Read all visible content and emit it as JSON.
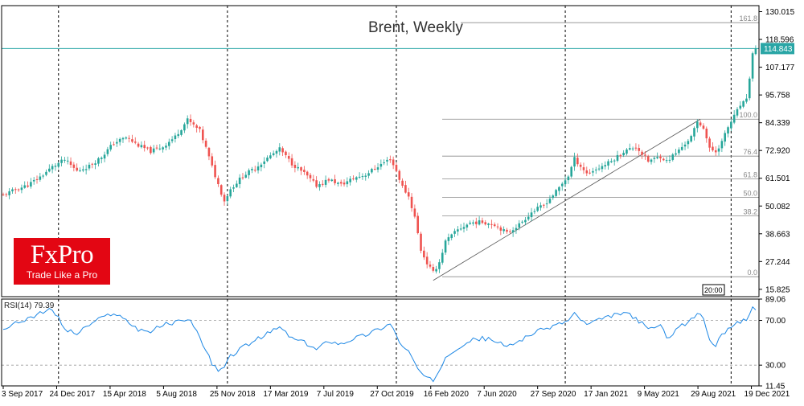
{
  "chart_data": {
    "type": "candlestick",
    "title": "Brent, Weekly",
    "price_panel": {
      "ylim": [
        12.8,
        132.5
      ],
      "y_ticks": [
        "130.015",
        "118.596",
        "107.177",
        "95.758",
        "84.339",
        "72.920",
        "61.501",
        "50.082",
        "38.663",
        "27.244",
        "15.825"
      ],
      "current_price": "114.843",
      "current_price_value": 114.843,
      "time_marker": "20:00",
      "date_separators": [
        "24 Dec 2017",
        "25 Nov 2018",
        "27 Oct 2019",
        "17 Jan 2021",
        "19 Dec 2021"
      ],
      "weekly_close_path": [
        [
          0,
          54.5
        ],
        [
          4,
          56.8
        ],
        [
          8,
          58.7
        ],
        [
          12,
          62.0
        ],
        [
          16,
          66.2
        ],
        [
          20,
          69.1
        ],
        [
          24,
          64.5
        ],
        [
          28,
          66.5
        ],
        [
          32,
          70.3
        ],
        [
          36,
          76.0
        ],
        [
          40,
          78.3
        ],
        [
          44,
          75.0
        ],
        [
          48,
          72.6
        ],
        [
          52,
          74.5
        ],
        [
          56,
          78.6
        ],
        [
          60,
          85.5
        ],
        [
          64,
          81.0
        ],
        [
          66,
          74.0
        ],
        [
          68,
          66.2
        ],
        [
          70,
          58.9
        ],
        [
          72,
          52.2
        ],
        [
          74,
          57.0
        ],
        [
          78,
          62.5
        ],
        [
          82,
          65.6
        ],
        [
          86,
          69.8
        ],
        [
          90,
          73.5
        ],
        [
          94,
          67.5
        ],
        [
          98,
          63.5
        ],
        [
          102,
          58.5
        ],
        [
          106,
          61.0
        ],
        [
          110,
          58.8
        ],
        [
          114,
          61.5
        ],
        [
          118,
          63.0
        ],
        [
          122,
          66.5
        ],
        [
          126,
          69.5
        ],
        [
          128,
          64.5
        ],
        [
          130,
          58.0
        ],
        [
          132,
          54.0
        ],
        [
          134,
          45.5
        ],
        [
          136,
          32.0
        ],
        [
          138,
          26.5
        ],
        [
          140,
          22.7
        ],
        [
          142,
          27.0
        ],
        [
          144,
          35.5
        ],
        [
          148,
          40.3
        ],
        [
          152,
          43.2
        ],
        [
          156,
          43.5
        ],
        [
          160,
          42.5
        ],
        [
          164,
          39.0
        ],
        [
          168,
          42.5
        ],
        [
          172,
          47.5
        ],
        [
          176,
          50.5
        ],
        [
          180,
          56.0
        ],
        [
          184,
          62.5
        ],
        [
          186,
          69.5
        ],
        [
          190,
          63.5
        ],
        [
          194,
          65.8
        ],
        [
          198,
          68.5
        ],
        [
          202,
          72.5
        ],
        [
          206,
          74.5
        ],
        [
          210,
          68.5
        ],
        [
          214,
          70.5
        ],
        [
          216,
          68.5
        ],
        [
          220,
          73.0
        ],
        [
          224,
          78.5
        ],
        [
          226,
          84.5
        ],
        [
          228,
          82.5
        ],
        [
          230,
          73.5
        ],
        [
          232,
          72.5
        ],
        [
          234,
          76.5
        ],
        [
          236,
          82.5
        ],
        [
          238,
          87.0
        ],
        [
          240,
          91.5
        ],
        [
          242,
          93.5
        ],
        [
          244,
          112.5
        ],
        [
          245,
          114.8
        ]
      ],
      "fibonacci": {
        "levels": [
          {
            "label": "161.8",
            "price": 125.5
          },
          {
            "label": "100.0",
            "price": 85.8
          },
          {
            "label": "76.4",
            "price": 70.6
          },
          {
            "label": "61.8",
            "price": 61.2
          },
          {
            "label": "50.0",
            "price": 53.6
          },
          {
            "label": "38.2",
            "price": 46.0
          },
          {
            "label": "0.0",
            "price": 21.0
          }
        ],
        "trendline": {
          "from": [
            140,
            19.5
          ],
          "to": [
            227,
            85.8
          ]
        }
      }
    },
    "rsi_panel": {
      "label": "RSI(14) 79.39",
      "ylim": [
        11.45,
        89.06
      ],
      "y_ticks": [
        "89.06",
        "70.00",
        "30.00",
        "11.45"
      ],
      "levels": [
        70,
        30
      ],
      "series": [
        [
          0,
          62
        ],
        [
          4,
          67
        ],
        [
          8,
          72
        ],
        [
          12,
          76
        ],
        [
          16,
          80
        ],
        [
          18,
          72
        ],
        [
          20,
          62
        ],
        [
          24,
          58
        ],
        [
          28,
          66
        ],
        [
          32,
          72
        ],
        [
          36,
          77
        ],
        [
          40,
          70
        ],
        [
          44,
          62
        ],
        [
          48,
          60
        ],
        [
          52,
          66
        ],
        [
          56,
          68
        ],
        [
          60,
          72
        ],
        [
          62,
          66
        ],
        [
          64,
          55
        ],
        [
          66,
          42
        ],
        [
          68,
          32
        ],
        [
          70,
          24
        ],
        [
          72,
          28
        ],
        [
          74,
          38
        ],
        [
          78,
          46
        ],
        [
          82,
          52
        ],
        [
          86,
          58
        ],
        [
          90,
          64
        ],
        [
          94,
          54
        ],
        [
          98,
          50
        ],
        [
          102,
          44
        ],
        [
          106,
          52
        ],
        [
          110,
          49
        ],
        [
          114,
          54
        ],
        [
          118,
          57
        ],
        [
          122,
          62
        ],
        [
          126,
          67
        ],
        [
          128,
          57
        ],
        [
          130,
          46
        ],
        [
          132,
          42
        ],
        [
          134,
          32
        ],
        [
          136,
          22
        ],
        [
          138,
          18
        ],
        [
          140,
          16
        ],
        [
          142,
          26
        ],
        [
          144,
          38
        ],
        [
          148,
          46
        ],
        [
          152,
          52
        ],
        [
          156,
          54
        ],
        [
          160,
          52
        ],
        [
          164,
          46
        ],
        [
          168,
          52
        ],
        [
          172,
          58
        ],
        [
          176,
          62
        ],
        [
          180,
          66
        ],
        [
          184,
          70
        ],
        [
          186,
          76
        ],
        [
          190,
          66
        ],
        [
          194,
          70
        ],
        [
          198,
          74
        ],
        [
          202,
          77
        ],
        [
          206,
          72
        ],
        [
          210,
          62
        ],
        [
          214,
          66
        ],
        [
          216,
          54
        ],
        [
          220,
          64
        ],
        [
          224,
          70
        ],
        [
          226,
          77
        ],
        [
          228,
          72
        ],
        [
          230,
          52
        ],
        [
          232,
          48
        ],
        [
          234,
          56
        ],
        [
          236,
          64
        ],
        [
          238,
          66
        ],
        [
          240,
          69
        ],
        [
          242,
          71
        ],
        [
          244,
          82
        ],
        [
          245,
          79.39
        ]
      ]
    },
    "x_axis": {
      "labels": [
        "3 Sep 2017",
        "24 Dec 2017",
        "15 Apr 2018",
        "5 Aug 2018",
        "25 Nov 2018",
        "17 Mar 2019",
        "7 Jul 2019",
        "27 Oct 2019",
        "16 Feb 2020",
        "7 Jun 2020",
        "27 Sep 2020",
        "17 Jan 2021",
        "9 May 2021",
        "29 Aug 2021",
        "19 Dec 2021"
      ]
    },
    "colors": {
      "up": "#26a69a",
      "down": "#ef5350",
      "rsi": "#1e88e5",
      "current_price": "#2aa6a6"
    }
  },
  "branding": {
    "logo_text": "FxPro",
    "logo_tagline": "Trade Like a Pro",
    "logo_color": "#e30613"
  }
}
